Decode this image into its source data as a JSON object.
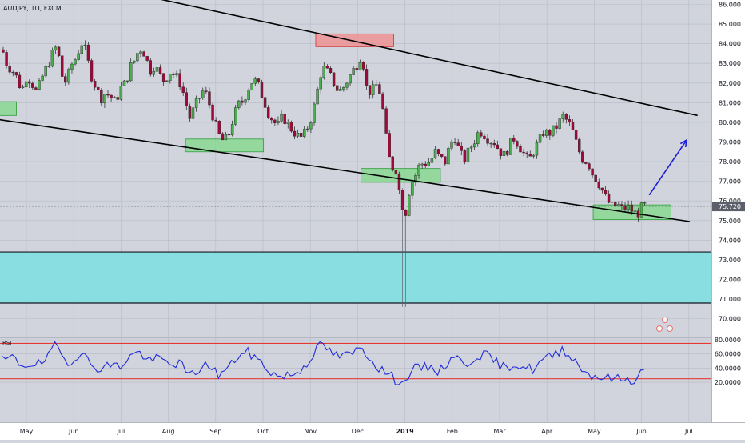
{
  "chart_data": {
    "type": "candlestick",
    "symbol_label": "AUDJPY, 1D, FXCM",
    "price_axis": {
      "ticks": [
        "86.000",
        "85.000",
        "84.000",
        "83.000",
        "82.000",
        "81.000",
        "80.000",
        "79.000",
        "78.000",
        "77.000",
        "76.000",
        "75.000",
        "74.000",
        "73.000",
        "72.000",
        "71.000",
        "70.000"
      ],
      "range": [
        69.3,
        86.3
      ]
    },
    "current_price": "75.720",
    "time_axis": {
      "labels": [
        "May",
        "Jun",
        "Jul",
        "Aug",
        "Sep",
        "Oct",
        "Nov",
        "Dec",
        "2019",
        "Feb",
        "Mar",
        "Apr",
        "May",
        "Jun",
        "Jul"
      ]
    },
    "price_path": [
      [
        0,
        83.7
      ],
      [
        6,
        82.9
      ],
      [
        12,
        82.7
      ],
      [
        18,
        82.3
      ],
      [
        25,
        81.6
      ],
      [
        31,
        82.4
      ],
      [
        38,
        82.0
      ],
      [
        44,
        81.5
      ],
      [
        51,
        82.3
      ],
      [
        57,
        82.8
      ],
      [
        63,
        83.4
      ],
      [
        70,
        83.9
      ],
      [
        76,
        82.4
      ],
      [
        82,
        82.0
      ],
      [
        88,
        82.9
      ],
      [
        95,
        83.3
      ],
      [
        101,
        84.1
      ],
      [
        107,
        83.6
      ],
      [
        113,
        82.5
      ],
      [
        120,
        81.8
      ],
      [
        126,
        81.2
      ],
      [
        132,
        81.5
      ],
      [
        139,
        81.3
      ],
      [
        145,
        81.0
      ],
      [
        151,
        81.7
      ],
      [
        158,
        82.0
      ],
      [
        164,
        82.8
      ],
      [
        170,
        83.2
      ],
      [
        176,
        83.8
      ],
      [
        183,
        83.5
      ],
      [
        189,
        82.6
      ],
      [
        195,
        82.9
      ],
      [
        202,
        82.4
      ],
      [
        208,
        82.1
      ],
      [
        214,
        82.6
      ],
      [
        221,
        82.4
      ],
      [
        227,
        82.1
      ],
      [
        233,
        81.4
      ],
      [
        240,
        80.2
      ],
      [
        246,
        80.7
      ],
      [
        252,
        81.2
      ],
      [
        259,
        81.7
      ],
      [
        265,
        81.0
      ],
      [
        271,
        80.2
      ],
      [
        277,
        79.4
      ],
      [
        284,
        79.0
      ],
      [
        290,
        79.3
      ],
      [
        296,
        80.2
      ],
      [
        303,
        80.9
      ],
      [
        309,
        81.1
      ],
      [
        315,
        81.7
      ],
      [
        322,
        82.2
      ],
      [
        328,
        81.9
      ],
      [
        334,
        81.3
      ],
      [
        341,
        80.5
      ],
      [
        347,
        80.1
      ],
      [
        353,
        79.8
      ],
      [
        360,
        80.3
      ],
      [
        366,
        79.9
      ],
      [
        372,
        79.6
      ],
      [
        379,
        79.3
      ],
      [
        385,
        79.2
      ],
      [
        391,
        79.7
      ],
      [
        398,
        80.4
      ],
      [
        404,
        81.6
      ],
      [
        410,
        82.8
      ],
      [
        416,
        82.6
      ],
      [
        423,
        82.2
      ],
      [
        429,
        81.7
      ],
      [
        435,
        81.6
      ],
      [
        442,
        82.1
      ],
      [
        448,
        82.5
      ],
      [
        454,
        82.9
      ],
      [
        461,
        83.5
      ],
      [
        467,
        81.8
      ],
      [
        473,
        81.5
      ],
      [
        480,
        81.9
      ],
      [
        486,
        81.4
      ],
      [
        492,
        79.3
      ],
      [
        498,
        77.8
      ],
      [
        505,
        77.6
      ],
      [
        511,
        76.1
      ],
      [
        517,
        75.3
      ],
      [
        523,
        76.8
      ],
      [
        530,
        77.3
      ],
      [
        536,
        77.9
      ],
      [
        542,
        77.9
      ],
      [
        549,
        78.0
      ],
      [
        555,
        78.5
      ],
      [
        561,
        78.2
      ],
      [
        568,
        78.0
      ],
      [
        574,
        78.8
      ],
      [
        580,
        79.3
      ],
      [
        587,
        78.4
      ],
      [
        593,
        78.1
      ],
      [
        599,
        78.6
      ],
      [
        606,
        79.1
      ],
      [
        612,
        79.6
      ],
      [
        618,
        79.4
      ],
      [
        625,
        79.1
      ],
      [
        631,
        79.0
      ],
      [
        637,
        78.6
      ],
      [
        644,
        78.3
      ],
      [
        650,
        78.8
      ],
      [
        656,
        79.2
      ],
      [
        662,
        78.9
      ],
      [
        669,
        78.4
      ],
      [
        675,
        78.0
      ],
      [
        681,
        78.5
      ],
      [
        688,
        79.0
      ],
      [
        694,
        79.5
      ],
      [
        700,
        79.4
      ],
      [
        707,
        79.6
      ],
      [
        713,
        79.9
      ],
      [
        719,
        80.3
      ],
      [
        726,
        80.0
      ],
      [
        732,
        79.5
      ],
      [
        738,
        78.7
      ],
      [
        745,
        78.1
      ],
      [
        751,
        78.0
      ],
      [
        757,
        77.4
      ],
      [
        764,
        77.0
      ],
      [
        770,
        76.5
      ],
      [
        776,
        76.0
      ],
      [
        783,
        75.7
      ],
      [
        789,
        75.8
      ],
      [
        795,
        75.6
      ],
      [
        802,
        75.7
      ],
      [
        808,
        75.5
      ],
      [
        814,
        75.3
      ],
      [
        821,
        75.7
      ],
      [
        827,
        75.8
      ]
    ],
    "channel_lines": [
      {
        "from": [
          -6,
          88.05
        ],
        "to": [
          892,
          80.35
        ]
      },
      {
        "from": [
          -6,
          80.15
        ],
        "to": [
          882,
          74.95
        ]
      }
    ],
    "supply_zones": [
      {
        "x": [
          402,
          502
        ],
        "y": [
          83.85,
          84.5
        ]
      }
    ],
    "demand_zones": [
      {
        "x": [
          -6,
          18
        ],
        "y": [
          80.35,
          81.05
        ]
      },
      {
        "x": [
          235,
          335
        ],
        "y": [
          78.5,
          79.15
        ]
      },
      {
        "x": [
          460,
          562
        ],
        "y": [
          76.95,
          77.65
        ]
      },
      {
        "x": [
          758,
          858
        ],
        "y": [
          75.05,
          75.8
        ]
      }
    ],
    "support_band": {
      "y": [
        70.8,
        73.4
      ]
    },
    "spike_low": 70.6,
    "forecast_arrow": {
      "from": [
        830,
        76.3
      ],
      "to": [
        878,
        79.1
      ]
    },
    "rsi": {
      "label": "RSI",
      "ticks": [
        "80.0000",
        "60.0000",
        "40.0000",
        "20.0000"
      ],
      "upper_level": 75,
      "lower_level": 25,
      "values": [
        [
          0,
          50
        ],
        [
          12,
          55
        ],
        [
          25,
          44
        ],
        [
          38,
          47
        ],
        [
          50,
          45
        ],
        [
          63,
          62
        ],
        [
          70,
          76
        ],
        [
          76,
          56
        ],
        [
          88,
          48
        ],
        [
          101,
          65
        ],
        [
          113,
          44
        ],
        [
          126,
          40
        ],
        [
          139,
          45
        ],
        [
          151,
          42
        ],
        [
          164,
          58
        ],
        [
          176,
          62
        ],
        [
          189,
          50
        ],
        [
          202,
          54
        ],
        [
          214,
          45
        ],
        [
          227,
          48
        ],
        [
          240,
          28
        ],
        [
          252,
          38
        ],
        [
          265,
          46
        ],
        [
          277,
          30
        ],
        [
          290,
          40
        ],
        [
          303,
          58
        ],
        [
          315,
          62
        ],
        [
          328,
          52
        ],
        [
          341,
          38
        ],
        [
          353,
          28
        ],
        [
          366,
          30
        ],
        [
          379,
          34
        ],
        [
          391,
          48
        ],
        [
          404,
          68
        ],
        [
          411,
          74
        ],
        [
          423,
          60
        ],
        [
          435,
          56
        ],
        [
          448,
          60
        ],
        [
          461,
          70
        ],
        [
          473,
          52
        ],
        [
          486,
          38
        ],
        [
          498,
          30
        ],
        [
          505,
          22
        ],
        [
          511,
          24
        ],
        [
          517,
          18
        ],
        [
          523,
          38
        ],
        [
          536,
          40
        ],
        [
          549,
          42
        ],
        [
          561,
          35
        ],
        [
          574,
          52
        ],
        [
          580,
          60
        ],
        [
          593,
          42
        ],
        [
          606,
          56
        ],
        [
          618,
          60
        ],
        [
          631,
          50
        ],
        [
          644,
          40
        ],
        [
          656,
          46
        ],
        [
          669,
          42
        ],
        [
          681,
          38
        ],
        [
          694,
          52
        ],
        [
          707,
          58
        ],
        [
          719,
          68
        ],
        [
          726,
          60
        ],
        [
          738,
          46
        ],
        [
          751,
          32
        ],
        [
          764,
          28
        ],
        [
          776,
          26
        ],
        [
          789,
          25
        ],
        [
          802,
          24
        ],
        [
          814,
          23
        ],
        [
          821,
          38
        ],
        [
          827,
          40
        ]
      ]
    }
  }
}
